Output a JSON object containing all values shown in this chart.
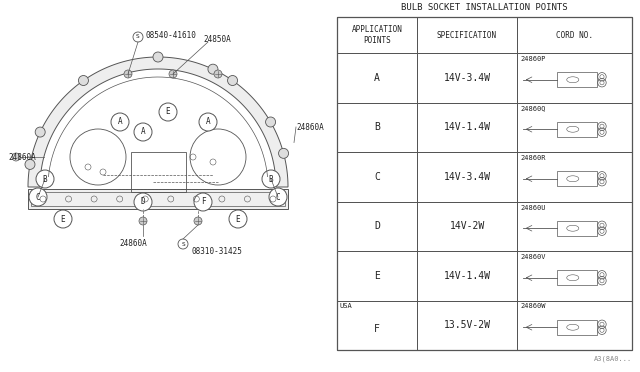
{
  "title": "BULB SOCKET INSTALLATION POINTS",
  "table_header_col0": "APPLICATION\nPOINTS",
  "table_header_col1": "SPECIFICATION",
  "table_header_col2": "CORD NO.",
  "rows": [
    {
      "app": "A",
      "spec": "14V-3.4W",
      "cord": "24860P",
      "usa": false
    },
    {
      "app": "B",
      "spec": "14V-1.4W",
      "cord": "24860Q",
      "usa": false
    },
    {
      "app": "C",
      "spec": "14V-3.4W",
      "cord": "24860R",
      "usa": false
    },
    {
      "app": "D",
      "spec": "14V-2W",
      "cord": "24860U",
      "usa": false
    },
    {
      "app": "E",
      "spec": "14V-1.4W",
      "cord": "24860V",
      "usa": false
    },
    {
      "app": "F",
      "spec": "13.5V-2W",
      "cord": "24860W",
      "usa": true
    }
  ],
  "footnote": "A3(8A0...",
  "bg_color": "#ffffff",
  "lc": "#555555"
}
